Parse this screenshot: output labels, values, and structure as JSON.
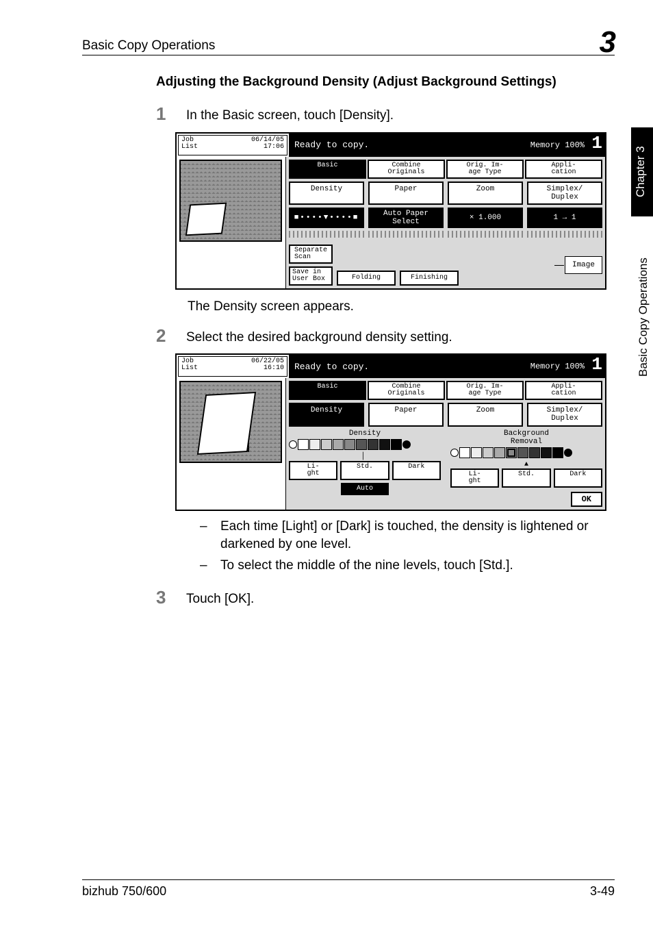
{
  "header": {
    "section": "Basic Copy Operations",
    "chapter_badge": "3"
  },
  "side": {
    "tab": "Chapter 3",
    "text": "Basic Copy Operations"
  },
  "subheading": "Adjusting the Background Density (Adjust Background Settings)",
  "steps": {
    "s1_num": "1",
    "s1_text": "In the Basic screen, touch [Density].",
    "s1_after": "The Density screen appears.",
    "s2_num": "2",
    "s2_text": "Select the desired background density setting.",
    "s2_bullets": [
      "Each time [Light] or [Dark] is touched, the density is lightened or darkened by one level.",
      "To select the middle of the nine levels, touch [Std.]."
    ],
    "s3_num": "3",
    "s3_text": "Touch [OK]."
  },
  "screen1": {
    "joblist_label": "Job\nList",
    "joblist_time": "06/14/05\n17:06",
    "ready": "Ready to copy.",
    "memory": "Memory  100%",
    "counter": "1",
    "tabs": [
      "Basic",
      "Combine\nOriginals",
      "Orig. Im-\nage Type",
      "Appli-\ncation"
    ],
    "row1": [
      "Density",
      "Paper",
      "Zoom",
      "Simplex/\nDuplex"
    ],
    "row2": [
      "",
      "Auto Paper\nSelect",
      "× 1.000",
      "1 → 1"
    ],
    "sepscan": "Separate\nScan",
    "savebox": "Save in\nUser Box",
    "folding": "Folding",
    "finishing": "Finishing",
    "image": "Image"
  },
  "screen2": {
    "joblist_label": "Job\nList",
    "joblist_time": "06/22/05\n16:10",
    "ready": "Ready to copy.",
    "memory": "Memory  100%",
    "counter": "1",
    "tabs": [
      "Basic",
      "Combine\nOriginals",
      "Orig. Im-\nage Type",
      "Appli-\ncation"
    ],
    "row1": [
      "Density",
      "Paper",
      "Zoom",
      "Simplex/\nDuplex"
    ],
    "grp1_title": "Density",
    "grp2_title": "Background\nRemoval",
    "btns": [
      "Li-\nght",
      "Std.",
      "Dark"
    ],
    "auto": "Auto",
    "ok": "OK"
  },
  "footer": {
    "left": "bizhub 750/600",
    "right": "3-49"
  }
}
